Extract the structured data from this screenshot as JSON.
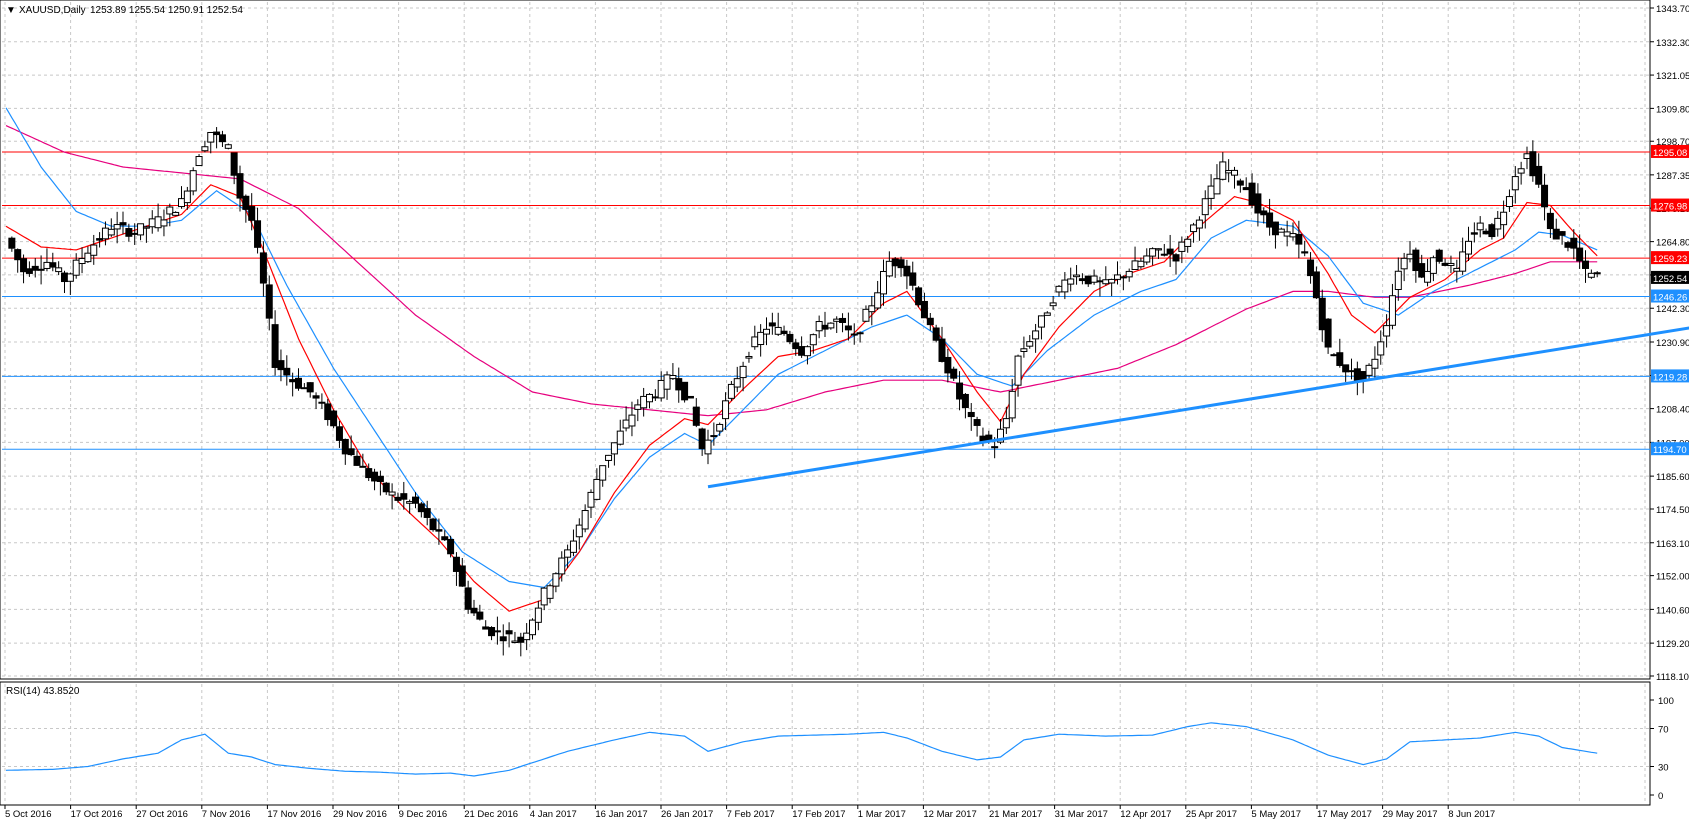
{
  "header": {
    "symbol": "XAUUSD,Daily",
    "ohlc": "1253.89 1255.54 1250.91 1252.54"
  },
  "rsi_label": "RSI(14) 43.8520",
  "colors": {
    "background": "#ffffff",
    "grid": "#c8c8c8",
    "candle": "#000000",
    "ema_fast": "#ff0000",
    "ema_mid": "#1e90ff",
    "sma_slow": "#e6007e",
    "resistance": "#ff0000",
    "support": "#1e90ff",
    "trendline": "#1e90ff",
    "rsi": "#1e90ff",
    "current_price_bg": "#000000"
  },
  "chart_data": [
    {
      "type": "candlestick",
      "title": "XAUUSD,Daily",
      "y_axis_ticks": [
        "1343.70",
        "1332.30",
        "1321.05",
        "1309.80",
        "1298.70",
        "1287.35",
        "1276.10",
        "1264.80",
        "1253.55",
        "1242.30",
        "1230.90",
        "1219.60",
        "1208.40",
        "1197.00",
        "1185.60",
        "1174.50",
        "1163.10",
        "1152.00",
        "1140.60",
        "1129.20",
        "1118.10"
      ],
      "ylim": [
        1118.1,
        1343.7
      ],
      "x_axis_ticks": [
        "5 Oct 2016",
        "17 Oct 2016",
        "27 Oct 2016",
        "7 Nov 2016",
        "17 Nov 2016",
        "29 Nov 2016",
        "9 Dec 2016",
        "21 Dec 2016",
        "4 Jan 2017",
        "16 Jan 2017",
        "26 Jan 2017",
        "7 Feb 2017",
        "17 Feb 2017",
        "1 Mar 2017",
        "12 Mar 2017",
        "21 Mar 2017",
        "31 Mar 2017",
        "12 Apr 2017",
        "25 Apr 2017",
        "5 May 2017",
        "17 May 2017",
        "29 May 2017",
        "8 Jun 2017"
      ],
      "price_path": [
        [
          0,
          1266
        ],
        [
          3,
          1255
        ],
        [
          7,
          1258
        ],
        [
          10,
          1252
        ],
        [
          14,
          1262
        ],
        [
          18,
          1270
        ],
        [
          22,
          1268
        ],
        [
          26,
          1272
        ],
        [
          30,
          1278
        ],
        [
          33,
          1295
        ],
        [
          35,
          1302
        ],
        [
          38,
          1296
        ],
        [
          40,
          1280
        ],
        [
          42,
          1272
        ],
        [
          44,
          1250
        ],
        [
          46,
          1224
        ],
        [
          49,
          1218
        ],
        [
          52,
          1214
        ],
        [
          55,
          1206
        ],
        [
          58,
          1195
        ],
        [
          61,
          1188
        ],
        [
          64,
          1182
        ],
        [
          67,
          1178
        ],
        [
          70,
          1176
        ],
        [
          73,
          1168
        ],
        [
          76,
          1160
        ],
        [
          79,
          1142
        ],
        [
          82,
          1134
        ],
        [
          85,
          1132
        ],
        [
          88,
          1130
        ],
        [
          90,
          1138
        ],
        [
          93,
          1150
        ],
        [
          96,
          1160
        ],
        [
          99,
          1174
        ],
        [
          102,
          1190
        ],
        [
          105,
          1200
        ],
        [
          108,
          1210
        ],
        [
          111,
          1214
        ],
        [
          114,
          1220
        ],
        [
          117,
          1210
        ],
        [
          119,
          1195
        ],
        [
          121,
          1200
        ],
        [
          124,
          1215
        ],
        [
          127,
          1228
        ],
        [
          130,
          1236
        ],
        [
          133,
          1234
        ],
        [
          136,
          1228
        ],
        [
          139,
          1236
        ],
        [
          142,
          1238
        ],
        [
          145,
          1232
        ],
        [
          148,
          1244
        ],
        [
          151,
          1258
        ],
        [
          153,
          1258
        ],
        [
          155,
          1250
        ],
        [
          157,
          1240
        ],
        [
          159,
          1230
        ],
        [
          161,
          1222
        ],
        [
          163,
          1212
        ],
        [
          165,
          1204
        ],
        [
          167,
          1198
        ],
        [
          169,
          1196
        ],
        [
          171,
          1205
        ],
        [
          173,
          1226
        ],
        [
          175,
          1232
        ],
        [
          177,
          1238
        ],
        [
          179,
          1246
        ],
        [
          182,
          1254
        ],
        [
          185,
          1252
        ],
        [
          188,
          1250
        ],
        [
          191,
          1254
        ],
        [
          194,
          1258
        ],
        [
          197,
          1262
        ],
        [
          200,
          1260
        ],
        [
          203,
          1270
        ],
        [
          206,
          1282
        ],
        [
          208,
          1290
        ],
        [
          210,
          1287
        ],
        [
          212,
          1283
        ],
        [
          214,
          1275
        ],
        [
          216,
          1270
        ],
        [
          218,
          1268
        ],
        [
          220,
          1266
        ],
        [
          222,
          1260
        ],
        [
          224,
          1246
        ],
        [
          226,
          1228
        ],
        [
          228,
          1224
        ],
        [
          230,
          1220
        ],
        [
          232,
          1218
        ],
        [
          234,
          1226
        ],
        [
          236,
          1238
        ],
        [
          238,
          1256
        ],
        [
          240,
          1262
        ],
        [
          242,
          1252
        ],
        [
          244,
          1260
        ],
        [
          246,
          1258
        ],
        [
          248,
          1254
        ],
        [
          250,
          1266
        ],
        [
          252,
          1270
        ],
        [
          254,
          1268
        ],
        [
          256,
          1276
        ],
        [
          258,
          1288
        ],
        [
          260,
          1294
        ],
        [
          262,
          1284
        ],
        [
          264,
          1268
        ],
        [
          266,
          1266
        ],
        [
          268,
          1262
        ],
        [
          270,
          1254
        ],
        [
          272,
          1253
        ]
      ],
      "ema_fast_path": [
        [
          0,
          1270
        ],
        [
          6,
          1263
        ],
        [
          12,
          1262
        ],
        [
          18,
          1266
        ],
        [
          24,
          1270
        ],
        [
          30,
          1274
        ],
        [
          35,
          1284
        ],
        [
          40,
          1280
        ],
        [
          44,
          1262
        ],
        [
          50,
          1232
        ],
        [
          56,
          1208
        ],
        [
          62,
          1188
        ],
        [
          68,
          1175
        ],
        [
          74,
          1164
        ],
        [
          80,
          1150
        ],
        [
          86,
          1140
        ],
        [
          92,
          1144
        ],
        [
          98,
          1160
        ],
        [
          104,
          1180
        ],
        [
          110,
          1196
        ],
        [
          116,
          1205
        ],
        [
          120,
          1203
        ],
        [
          126,
          1215
        ],
        [
          132,
          1226
        ],
        [
          138,
          1228
        ],
        [
          144,
          1232
        ],
        [
          150,
          1244
        ],
        [
          154,
          1248
        ],
        [
          160,
          1232
        ],
        [
          166,
          1214
        ],
        [
          170,
          1204
        ],
        [
          174,
          1220
        ],
        [
          180,
          1236
        ],
        [
          186,
          1248
        ],
        [
          192,
          1254
        ],
        [
          198,
          1258
        ],
        [
          204,
          1270
        ],
        [
          210,
          1280
        ],
        [
          214,
          1278
        ],
        [
          220,
          1272
        ],
        [
          226,
          1254
        ],
        [
          230,
          1240
        ],
        [
          234,
          1234
        ],
        [
          240,
          1246
        ],
        [
          246,
          1252
        ],
        [
          252,
          1262
        ],
        [
          256,
          1266
        ],
        [
          260,
          1278
        ],
        [
          264,
          1277
        ],
        [
          268,
          1268
        ],
        [
          272,
          1260
        ]
      ],
      "ema_mid_path": [
        [
          0,
          1310
        ],
        [
          6,
          1290
        ],
        [
          12,
          1275
        ],
        [
          18,
          1270
        ],
        [
          24,
          1270
        ],
        [
          30,
          1272
        ],
        [
          36,
          1282
        ],
        [
          42,
          1274
        ],
        [
          48,
          1250
        ],
        [
          56,
          1222
        ],
        [
          64,
          1198
        ],
        [
          70,
          1180
        ],
        [
          78,
          1160
        ],
        [
          86,
          1150
        ],
        [
          92,
          1148
        ],
        [
          98,
          1160
        ],
        [
          104,
          1178
        ],
        [
          110,
          1192
        ],
        [
          116,
          1200
        ],
        [
          120,
          1196
        ],
        [
          126,
          1208
        ],
        [
          132,
          1220
        ],
        [
          140,
          1228
        ],
        [
          148,
          1236
        ],
        [
          154,
          1240
        ],
        [
          160,
          1232
        ],
        [
          166,
          1220
        ],
        [
          172,
          1216
        ],
        [
          178,
          1228
        ],
        [
          186,
          1240
        ],
        [
          194,
          1248
        ],
        [
          200,
          1252
        ],
        [
          206,
          1266
        ],
        [
          212,
          1272
        ],
        [
          220,
          1270
        ],
        [
          226,
          1260
        ],
        [
          232,
          1244
        ],
        [
          238,
          1240
        ],
        [
          244,
          1248
        ],
        [
          252,
          1256
        ],
        [
          258,
          1262
        ],
        [
          262,
          1268
        ],
        [
          266,
          1267
        ],
        [
          272,
          1262
        ]
      ],
      "sma_slow_path": [
        [
          0,
          1304
        ],
        [
          10,
          1295
        ],
        [
          20,
          1290
        ],
        [
          30,
          1288
        ],
        [
          40,
          1286
        ],
        [
          50,
          1276
        ],
        [
          60,
          1258
        ],
        [
          70,
          1240
        ],
        [
          80,
          1226
        ],
        [
          90,
          1214
        ],
        [
          100,
          1210
        ],
        [
          110,
          1208
        ],
        [
          120,
          1206
        ],
        [
          130,
          1208
        ],
        [
          140,
          1214
        ],
        [
          150,
          1218
        ],
        [
          160,
          1218
        ],
        [
          170,
          1214
        ],
        [
          180,
          1218
        ],
        [
          190,
          1222
        ],
        [
          200,
          1230
        ],
        [
          206,
          1236
        ],
        [
          212,
          1242
        ],
        [
          220,
          1248
        ],
        [
          226,
          1248
        ],
        [
          234,
          1246
        ],
        [
          240,
          1246
        ],
        [
          250,
          1250
        ],
        [
          258,
          1254
        ],
        [
          264,
          1258
        ],
        [
          268,
          1258
        ],
        [
          272,
          1258
        ]
      ],
      "resistance_levels": [
        {
          "label": "1295.08",
          "value": 1295.08
        },
        {
          "label": "1276.98",
          "value": 1276.98
        },
        {
          "label": "1259.23",
          "value": 1259.23
        }
      ],
      "support_levels": [
        {
          "label": "1246.26",
          "value": 1246.26
        },
        {
          "label": "1219.28",
          "value": 1219.28
        },
        {
          "label": "1194.70",
          "value": 1194.7
        }
      ],
      "current_price": {
        "label": "1252.54",
        "value": 1252.54
      },
      "trendline": {
        "from": [
          120,
          1182
        ],
        "to": [
          292,
          1237
        ]
      }
    },
    {
      "type": "line",
      "title": "RSI(14) 43.8520",
      "y_axis_ticks": [
        "100",
        "70",
        "30",
        "0"
      ],
      "ylim": [
        0,
        100
      ],
      "values": [
        [
          0,
          26
        ],
        [
          8,
          27
        ],
        [
          14,
          30
        ],
        [
          20,
          38
        ],
        [
          26,
          44
        ],
        [
          30,
          58
        ],
        [
          34,
          64
        ],
        [
          38,
          44
        ],
        [
          42,
          40
        ],
        [
          46,
          32
        ],
        [
          52,
          28
        ],
        [
          58,
          25
        ],
        [
          64,
          24
        ],
        [
          70,
          22
        ],
        [
          76,
          23
        ],
        [
          80,
          20
        ],
        [
          86,
          26
        ],
        [
          90,
          34
        ],
        [
          96,
          46
        ],
        [
          104,
          58
        ],
        [
          110,
          66
        ],
        [
          116,
          62
        ],
        [
          120,
          46
        ],
        [
          126,
          56
        ],
        [
          132,
          62
        ],
        [
          138,
          63
        ],
        [
          144,
          64
        ],
        [
          150,
          66
        ],
        [
          154,
          60
        ],
        [
          160,
          46
        ],
        [
          166,
          37
        ],
        [
          170,
          40
        ],
        [
          174,
          58
        ],
        [
          180,
          64
        ],
        [
          188,
          62
        ],
        [
          196,
          63
        ],
        [
          202,
          72
        ],
        [
          206,
          76
        ],
        [
          212,
          72
        ],
        [
          220,
          58
        ],
        [
          226,
          42
        ],
        [
          232,
          32
        ],
        [
          236,
          38
        ],
        [
          240,
          56
        ],
        [
          246,
          58
        ],
        [
          252,
          60
        ],
        [
          258,
          66
        ],
        [
          262,
          62
        ],
        [
          266,
          50
        ],
        [
          272,
          44
        ]
      ]
    }
  ]
}
